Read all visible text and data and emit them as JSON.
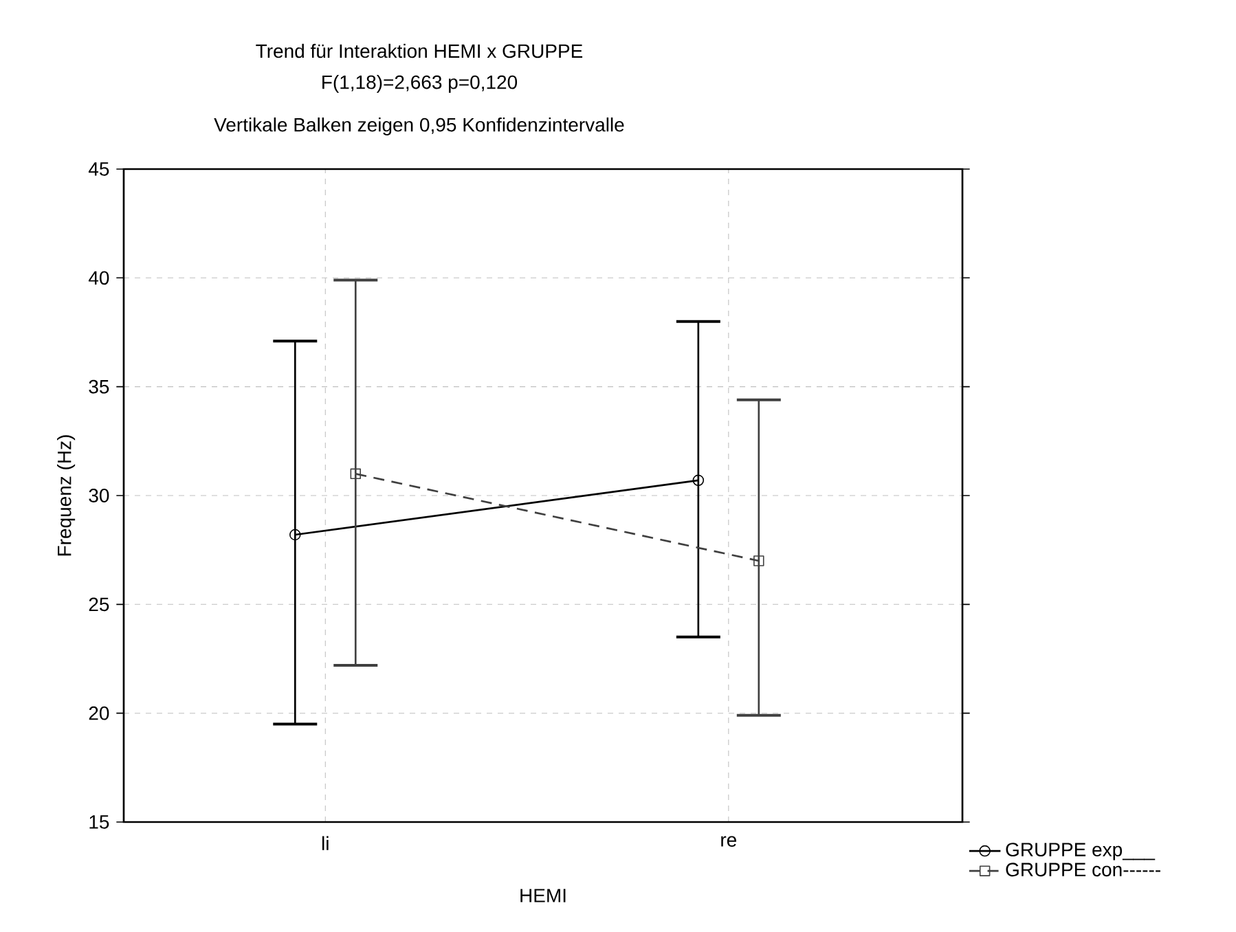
{
  "chart_data": {
    "type": "line",
    "title": "Trend für Interaktion HEMI x GRUPPE",
    "subtitle": "F(1,18)=2,663 p=0,120",
    "annotations": [
      "Vertikale Balken zeigen 0,95 Konfidenzintervalle"
    ],
    "xlabel": "HEMI",
    "ylabel": "Frequenz (Hz)",
    "categories": [
      "li",
      "re"
    ],
    "ylim": [
      15,
      45
    ],
    "yticks": [
      15,
      20,
      25,
      30,
      35,
      40,
      45
    ],
    "grid": true,
    "legend": "bottom right",
    "series": [
      {
        "name": "GRUPPE exp___",
        "color": "#000000",
        "marker": "circle",
        "line_style": "solid",
        "values": [
          28.2,
          30.7
        ],
        "errors": [
          [
            19.5,
            37.1
          ],
          [
            23.5,
            38.0
          ]
        ]
      },
      {
        "name": "GRUPPE con------",
        "color": "#404040",
        "marker": "square",
        "line_style": "dashed",
        "values": [
          31.0,
          27.0
        ],
        "errors": [
          [
            22.2,
            39.9
          ],
          [
            19.9,
            34.4
          ]
        ]
      }
    ]
  }
}
